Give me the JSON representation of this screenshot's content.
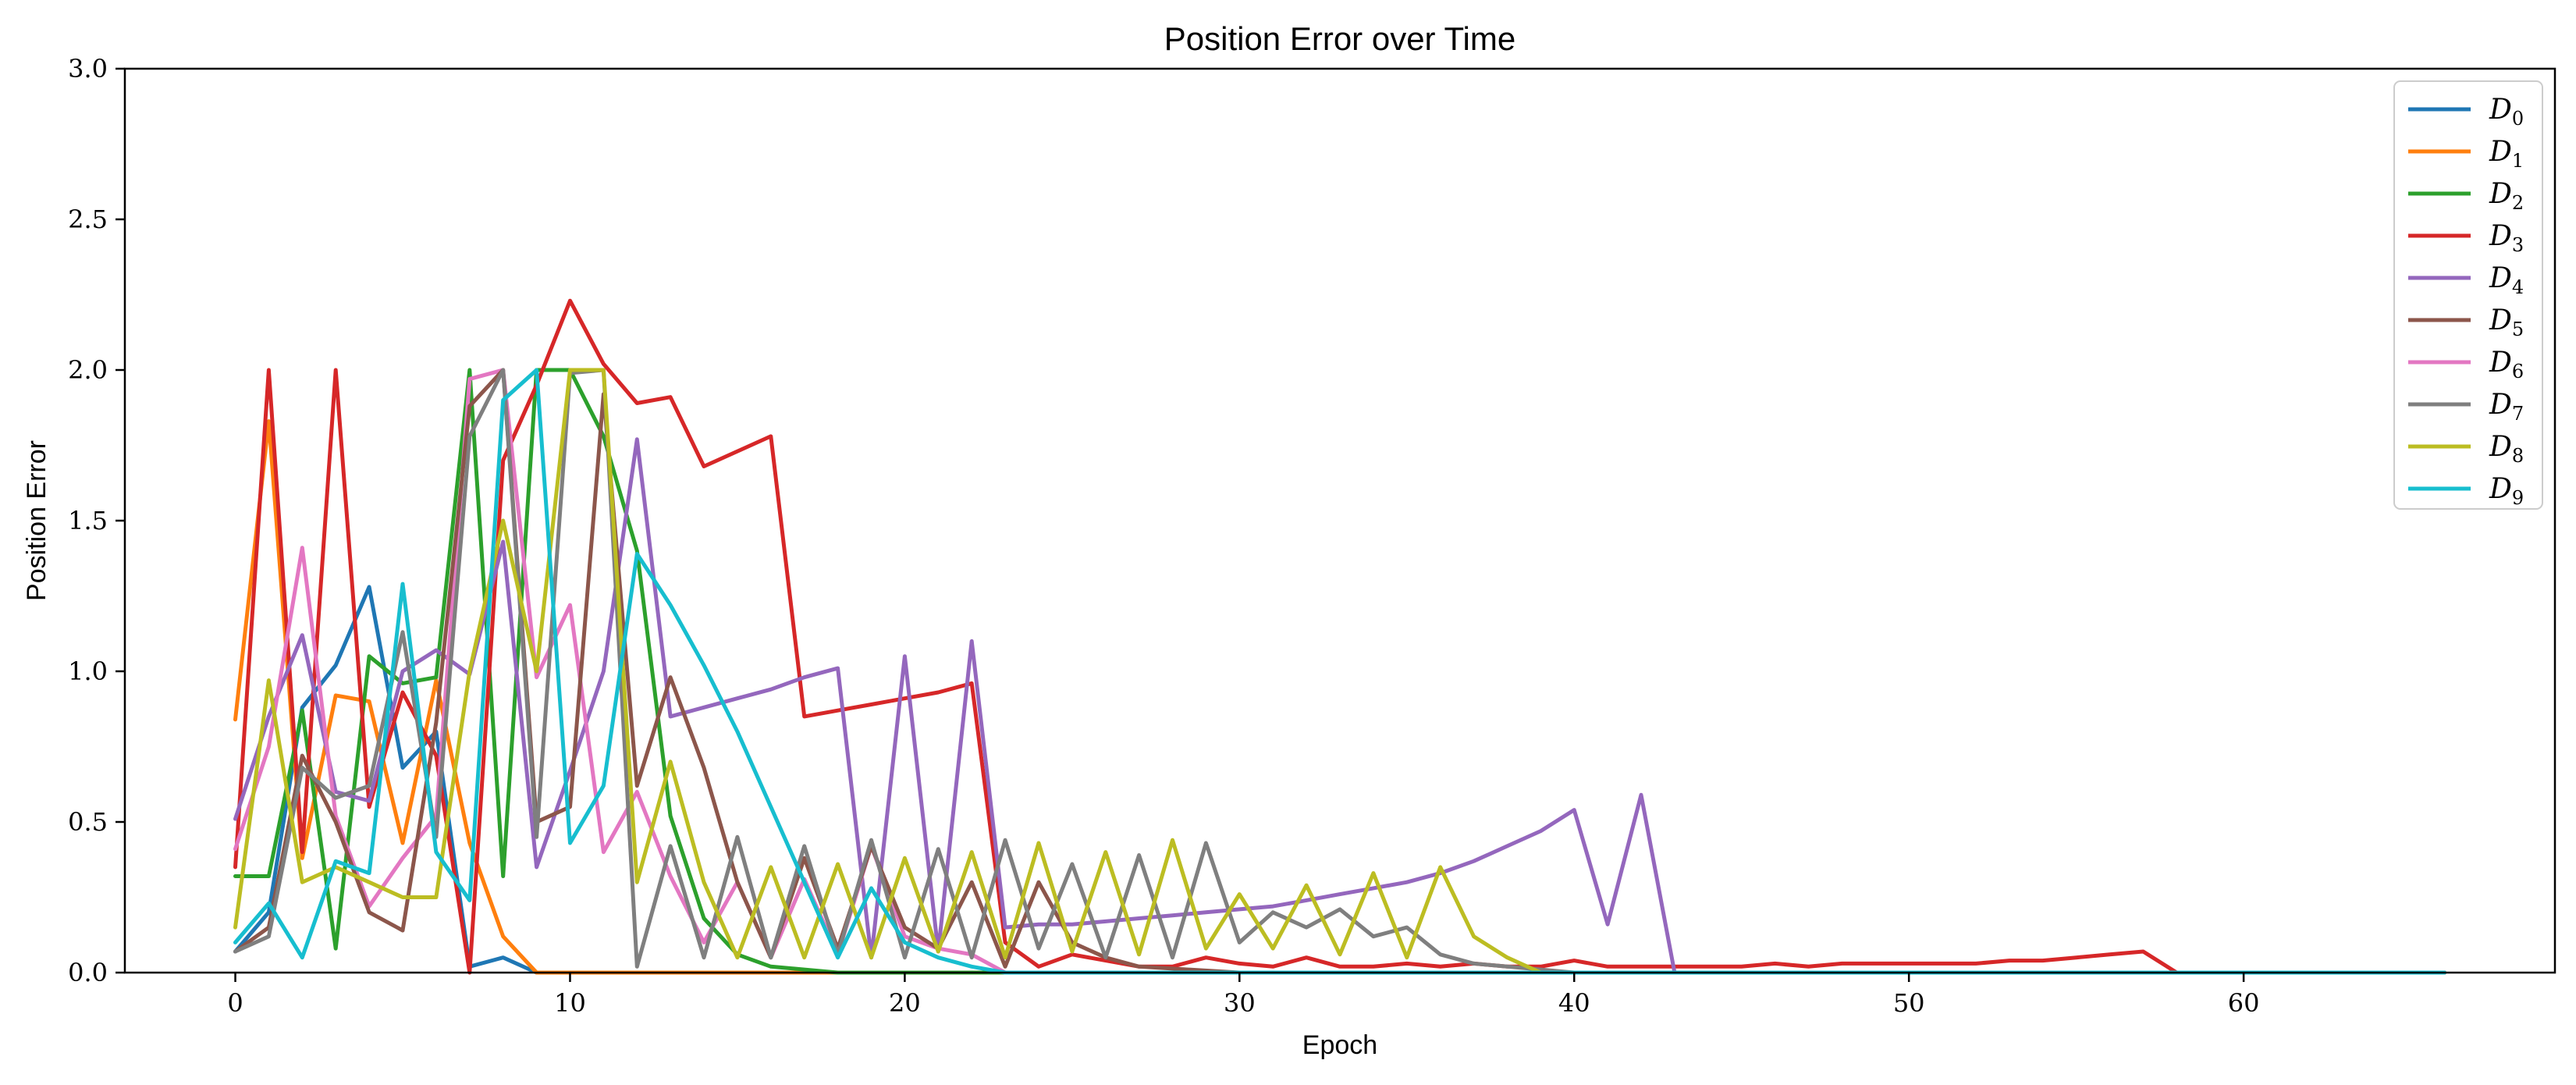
{
  "chart_data": {
    "type": "line",
    "title": "Position Error over Time",
    "xlabel": "Epoch",
    "ylabel": "Position Error",
    "xlim": [
      -3.3,
      69.3
    ],
    "ylim": [
      0,
      3.0
    ],
    "xticks": [
      0,
      10,
      20,
      30,
      40,
      50,
      60
    ],
    "yticks": [
      0.0,
      0.5,
      1.0,
      1.5,
      2.0,
      2.5,
      3.0
    ],
    "xtick_labels": [
      "0",
      "10",
      "20",
      "30",
      "40",
      "50",
      "60"
    ],
    "ytick_labels": [
      "0.0",
      "0.5",
      "1.0",
      "1.5",
      "2.0",
      "2.5",
      "3.0"
    ],
    "grid": false,
    "legend_position": "top-right",
    "series": [
      {
        "name": "D",
        "sub": "0",
        "color": "#1f77b4",
        "x": [
          0,
          1,
          2,
          3,
          4,
          5,
          6,
          7,
          8,
          9,
          10,
          20,
          30,
          40,
          50,
          60,
          66
        ],
        "y": [
          0.07,
          0.2,
          0.88,
          1.02,
          1.28,
          0.68,
          0.8,
          0.02,
          0.05,
          0.0,
          0.0,
          0.0,
          0.0,
          0.0,
          0.0,
          0.0,
          0.0
        ]
      },
      {
        "name": "D",
        "sub": "1",
        "color": "#ff7f0e",
        "x": [
          0,
          1,
          2,
          3,
          4,
          5,
          6,
          7,
          8,
          9,
          10,
          20,
          30,
          40,
          50,
          60,
          66
        ],
        "y": [
          0.84,
          1.83,
          0.38,
          0.92,
          0.9,
          0.43,
          0.97,
          0.43,
          0.12,
          0.0,
          0.0,
          0.0,
          0.0,
          0.0,
          0.0,
          0.0,
          0.0
        ]
      },
      {
        "name": "D",
        "sub": "2",
        "color": "#2ca02c",
        "x": [
          0,
          1,
          2,
          3,
          4,
          5,
          6,
          7,
          8,
          9,
          10,
          11,
          12,
          13,
          14,
          15,
          16,
          17,
          18,
          19,
          20,
          25,
          30,
          40,
          50,
          66
        ],
        "y": [
          0.32,
          0.32,
          0.87,
          0.08,
          1.05,
          0.96,
          0.98,
          2.0,
          0.32,
          2.0,
          2.0,
          1.78,
          1.4,
          0.52,
          0.18,
          0.06,
          0.02,
          0.01,
          0.0,
          0.0,
          0.0,
          0.0,
          0.0,
          0.0,
          0.0,
          0.0
        ]
      },
      {
        "name": "D",
        "sub": "3",
        "color": "#d62728",
        "x": [
          0,
          1,
          2,
          3,
          4,
          5,
          6,
          7,
          8,
          9,
          10,
          11,
          12,
          13,
          14,
          16,
          17,
          18,
          19,
          20,
          21,
          22,
          23,
          24,
          25,
          26,
          27,
          28,
          29,
          30,
          31,
          32,
          33,
          34,
          35,
          36,
          37,
          38,
          39,
          40,
          41,
          42,
          43,
          44,
          45,
          46,
          47,
          48,
          49,
          50,
          51,
          52,
          53,
          54,
          55,
          56,
          57,
          58,
          59,
          60,
          62,
          64,
          66
        ],
        "y": [
          0.35,
          2.0,
          0.4,
          2.0,
          0.55,
          0.93,
          0.72,
          0.0,
          1.7,
          1.95,
          2.23,
          2.02,
          1.89,
          1.91,
          1.68,
          1.78,
          0.85,
          0.87,
          0.89,
          0.91,
          0.93,
          0.96,
          0.1,
          0.02,
          0.06,
          0.04,
          0.02,
          0.02,
          0.05,
          0.03,
          0.02,
          0.05,
          0.02,
          0.02,
          0.03,
          0.02,
          0.03,
          0.02,
          0.02,
          0.04,
          0.02,
          0.02,
          0.02,
          0.02,
          0.02,
          0.03,
          0.02,
          0.03,
          0.03,
          0.03,
          0.03,
          0.03,
          0.04,
          0.04,
          0.05,
          0.06,
          0.07,
          0.0,
          0.0,
          0.0,
          0.0,
          0.0,
          0.0
        ]
      },
      {
        "name": "D",
        "sub": "4",
        "color": "#9467bd",
        "x": [
          0,
          1,
          2,
          3,
          4,
          5,
          6,
          7,
          8,
          9,
          10,
          11,
          12,
          13,
          14,
          15,
          16,
          17,
          18,
          19,
          20,
          21,
          22,
          23,
          24,
          25,
          26,
          27,
          28,
          29,
          30,
          31,
          32,
          33,
          34,
          35,
          36,
          37,
          38,
          39,
          40,
          41,
          42,
          43,
          44,
          50,
          60,
          66
        ],
        "y": [
          0.51,
          0.85,
          1.12,
          0.6,
          0.57,
          1.0,
          1.07,
          0.99,
          1.43,
          0.35,
          0.67,
          1.0,
          1.77,
          0.85,
          0.88,
          0.91,
          0.94,
          0.98,
          1.01,
          0.05,
          1.05,
          0.07,
          1.1,
          0.15,
          0.16,
          0.16,
          0.17,
          0.18,
          0.19,
          0.2,
          0.21,
          0.22,
          0.24,
          0.26,
          0.28,
          0.3,
          0.33,
          0.37,
          0.42,
          0.47,
          0.54,
          0.16,
          0.59,
          0.0,
          0.0,
          0.0,
          0.0,
          0.0
        ]
      },
      {
        "name": "D",
        "sub": "6",
        "color": "#e377c2",
        "x": [
          0,
          1,
          2,
          3,
          4,
          5,
          6,
          7,
          8,
          9,
          10,
          11,
          12,
          13,
          14,
          15,
          16,
          17,
          18,
          19,
          20,
          21,
          22,
          23,
          30,
          40,
          66
        ],
        "y": [
          0.41,
          0.75,
          1.41,
          0.52,
          0.22,
          0.38,
          0.52,
          1.97,
          2.0,
          0.98,
          1.22,
          0.4,
          0.6,
          0.32,
          0.1,
          0.3,
          0.05,
          0.31,
          0.06,
          0.42,
          0.12,
          0.08,
          0.06,
          0.0,
          0.0,
          0.0,
          0.0
        ]
      },
      {
        "name": "D",
        "sub": "5",
        "color": "#8c564b",
        "x": [
          0,
          1,
          2,
          3,
          4,
          5,
          6,
          7,
          8,
          9,
          10,
          11,
          12,
          13,
          14,
          15,
          16,
          17,
          18,
          19,
          20,
          21,
          22,
          23,
          24,
          25,
          26,
          27,
          30,
          40,
          66
        ],
        "y": [
          0.07,
          0.15,
          0.72,
          0.5,
          0.2,
          0.14,
          0.83,
          1.88,
          2.0,
          0.5,
          0.55,
          1.92,
          0.62,
          0.98,
          0.68,
          0.3,
          0.05,
          0.38,
          0.08,
          0.42,
          0.15,
          0.08,
          0.3,
          0.02,
          0.3,
          0.1,
          0.05,
          0.02,
          0.0,
          0.0,
          0.0
        ]
      },
      {
        "name": "D",
        "sub": "7",
        "color": "#7f7f7f",
        "x": [
          0,
          1,
          2,
          3,
          4,
          5,
          6,
          7,
          8,
          9,
          10,
          11,
          12,
          13,
          14,
          15,
          16,
          17,
          18,
          19,
          20,
          21,
          22,
          23,
          24,
          25,
          26,
          27,
          28,
          29,
          30,
          31,
          32,
          33,
          34,
          35,
          36,
          37,
          38,
          40,
          50,
          66
        ],
        "y": [
          0.07,
          0.12,
          0.68,
          0.58,
          0.62,
          1.13,
          0.45,
          1.78,
          2.0,
          0.45,
          1.99,
          2.0,
          0.02,
          0.42,
          0.05,
          0.45,
          0.05,
          0.42,
          0.06,
          0.44,
          0.05,
          0.41,
          0.05,
          0.44,
          0.08,
          0.36,
          0.05,
          0.39,
          0.05,
          0.43,
          0.1,
          0.2,
          0.15,
          0.21,
          0.12,
          0.15,
          0.06,
          0.03,
          0.02,
          0.0,
          0.0,
          0.0
        ]
      },
      {
        "name": "D",
        "sub": "8",
        "color": "#bcbd22",
        "x": [
          0,
          1,
          2,
          3,
          4,
          5,
          6,
          7,
          8,
          9,
          10,
          11,
          12,
          13,
          14,
          15,
          16,
          17,
          18,
          19,
          20,
          21,
          22,
          23,
          24,
          25,
          26,
          27,
          28,
          29,
          30,
          31,
          32,
          33,
          34,
          35,
          36,
          37,
          38,
          39,
          40,
          50,
          66
        ],
        "y": [
          0.15,
          0.97,
          0.3,
          0.35,
          0.3,
          0.25,
          0.25,
          1.0,
          1.5,
          1.0,
          2.0,
          2.0,
          0.3,
          0.7,
          0.3,
          0.05,
          0.35,
          0.05,
          0.36,
          0.05,
          0.38,
          0.07,
          0.4,
          0.05,
          0.43,
          0.07,
          0.4,
          0.06,
          0.44,
          0.08,
          0.26,
          0.08,
          0.29,
          0.06,
          0.33,
          0.05,
          0.35,
          0.12,
          0.05,
          0.0,
          0.0,
          0.0,
          0.0
        ]
      },
      {
        "name": "D",
        "sub": "9",
        "color": "#17becf",
        "x": [
          0,
          1,
          2,
          3,
          4,
          5,
          6,
          7,
          8,
          9,
          10,
          11,
          12,
          13,
          14,
          15,
          16,
          17,
          18,
          19,
          20,
          21,
          22,
          23,
          30,
          40,
          66
        ],
        "y": [
          0.1,
          0.23,
          0.05,
          0.37,
          0.33,
          1.29,
          0.4,
          0.24,
          1.9,
          2.0,
          0.43,
          0.62,
          1.39,
          1.22,
          1.02,
          0.8,
          0.55,
          0.3,
          0.05,
          0.28,
          0.1,
          0.05,
          0.02,
          0.0,
          0.0,
          0.0,
          0.0
        ]
      }
    ]
  }
}
